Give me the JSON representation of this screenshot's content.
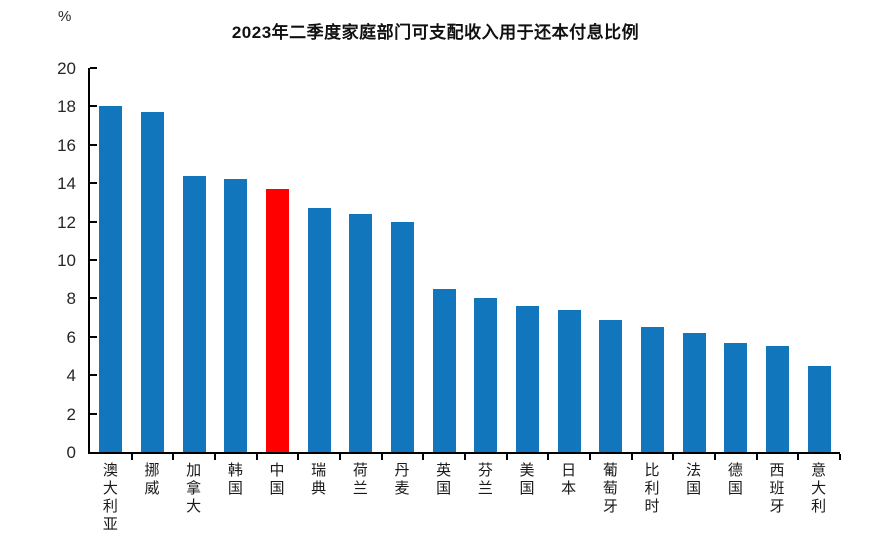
{
  "chart_data": {
    "type": "bar",
    "title": "2023年二季度家庭部门可支配收入用于还本付息比例",
    "unit_label": "%",
    "categories": [
      "澳大利亚",
      "挪威",
      "加拿大",
      "韩国",
      "中国",
      "瑞典",
      "荷兰",
      "丹麦",
      "英国",
      "芬兰",
      "美国",
      "日本",
      "葡萄牙",
      "比利时",
      "法国",
      "德国",
      "西班牙",
      "意大利"
    ],
    "values": [
      18.0,
      17.7,
      14.4,
      14.2,
      13.7,
      12.7,
      12.4,
      12.0,
      8.5,
      8.0,
      7.6,
      7.4,
      6.9,
      6.5,
      6.2,
      5.7,
      5.5,
      4.5
    ],
    "highlight_category": "中国",
    "highlight_index": 4,
    "ylim": [
      0,
      20
    ],
    "ytick_step": 2,
    "yticks": [
      0,
      2,
      4,
      6,
      8,
      10,
      12,
      14,
      16,
      18,
      20
    ],
    "bar_color": "#1276bd",
    "highlight_color": "#fe0000",
    "axis_color": "#000000",
    "grid": false,
    "legend": false,
    "xlabel": "",
    "ylabel": "%"
  }
}
